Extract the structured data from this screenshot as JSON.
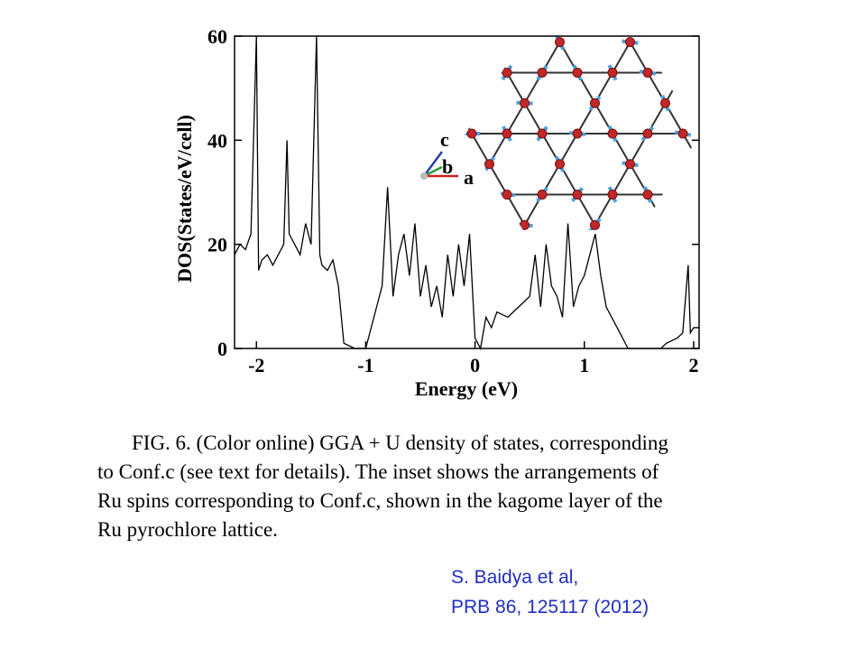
{
  "chart_data": {
    "type": "line",
    "xlabel": "Energy (eV)",
    "ylabel": "DOS(States/eV/cell)",
    "series": [
      {
        "color": "#000000",
        "x": [
          -2.2,
          -2.15,
          -2.1,
          -2.05,
          -2.0,
          -1.98,
          -1.95,
          -1.9,
          -1.85,
          -1.8,
          -1.75,
          -1.72,
          -1.7,
          -1.65,
          -1.6,
          -1.55,
          -1.5,
          -1.45,
          -1.42,
          -1.4,
          -1.35,
          -1.3,
          -1.25,
          -1.2,
          -1.1,
          -1.0,
          -0.95,
          -0.9,
          -0.85,
          -0.8,
          -0.75,
          -0.7,
          -0.65,
          -0.6,
          -0.55,
          -0.5,
          -0.45,
          -0.4,
          -0.35,
          -0.3,
          -0.25,
          -0.2,
          -0.15,
          -0.1,
          -0.05,
          0,
          0.05,
          0.1,
          0.15,
          0.2,
          0.3,
          0.4,
          0.5,
          0.55,
          0.6,
          0.65,
          0.7,
          0.75,
          0.8,
          0.85,
          0.9,
          0.95,
          1.0,
          1.05,
          1.1,
          1.15,
          1.2,
          1.3,
          1.4,
          1.5,
          1.6,
          1.7,
          1.75,
          1.85,
          1.9,
          1.95,
          1.97,
          2.0,
          2.05
        ],
        "values": [
          18,
          20,
          19,
          22,
          60,
          15,
          17,
          18,
          16,
          18,
          20,
          40,
          22,
          20,
          18,
          24,
          20,
          60,
          18,
          16,
          15,
          17,
          12,
          1,
          0,
          0,
          4,
          8,
          12,
          31,
          10,
          18,
          22,
          14,
          24,
          10,
          16,
          8,
          12,
          6,
          18,
          10,
          20,
          12,
          22,
          2,
          0,
          6,
          4,
          7,
          6,
          8,
          10,
          18,
          8,
          20,
          12,
          10,
          6,
          24,
          8,
          12,
          14,
          18,
          22,
          14,
          8,
          4,
          0,
          0,
          0,
          0,
          1,
          2,
          3,
          16,
          3,
          4,
          4
        ]
      }
    ],
    "xlim": [
      -2.2,
      2.05
    ],
    "xticks": [
      -2,
      -1,
      0,
      1,
      2
    ],
    "ylim": [
      0,
      60
    ],
    "yticks": [
      0,
      20,
      40,
      60
    ],
    "inset_axes": [
      "c",
      "b",
      "a"
    ]
  },
  "caption": [
    "FIG. 6.  (Color online) GGA + U density of states, corresponding",
    "to Conf.c (see text for details). The inset shows the arrangements of",
    "Ru spins corresponding to Conf.c, shown in the kagome layer of the",
    "Ru pyrochlore lattice."
  ],
  "citation": [
    "S. Baidya et al,",
    "PRB 86, 125117 (2012)"
  ]
}
